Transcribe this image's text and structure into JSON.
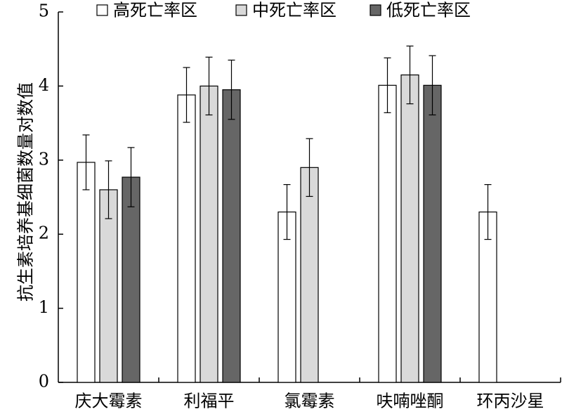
{
  "chart_data": {
    "type": "bar",
    "title": "",
    "xlabel": "",
    "ylabel": "抗生素培养基细菌数量对数值",
    "ylim": [
      0,
      5
    ],
    "yticks": [
      0,
      1,
      2,
      3,
      4,
      5
    ],
    "grid": false,
    "legend": "top",
    "categories": [
      "庆大霉素",
      "利福平",
      "氯霉素",
      "呋喃唑酮",
      "环丙沙星"
    ],
    "series": [
      {
        "name": "高死亡率区",
        "color": "#ffffff",
        "values": [
          2.97,
          3.88,
          2.3,
          4.01,
          2.3
        ],
        "errors": [
          0.37,
          0.37,
          0.37,
          0.37,
          0.37
        ]
      },
      {
        "name": "中死亡率区",
        "color": "#d9d9d9",
        "values": [
          2.6,
          4.0,
          2.9,
          4.15,
          null
        ],
        "errors": [
          0.39,
          0.39,
          0.39,
          0.39,
          null
        ]
      },
      {
        "name": "低死亡率区",
        "color": "#666666",
        "values": [
          2.77,
          3.95,
          null,
          4.01,
          null
        ],
        "errors": [
          0.4,
          0.4,
          null,
          0.4,
          null
        ]
      }
    ]
  }
}
